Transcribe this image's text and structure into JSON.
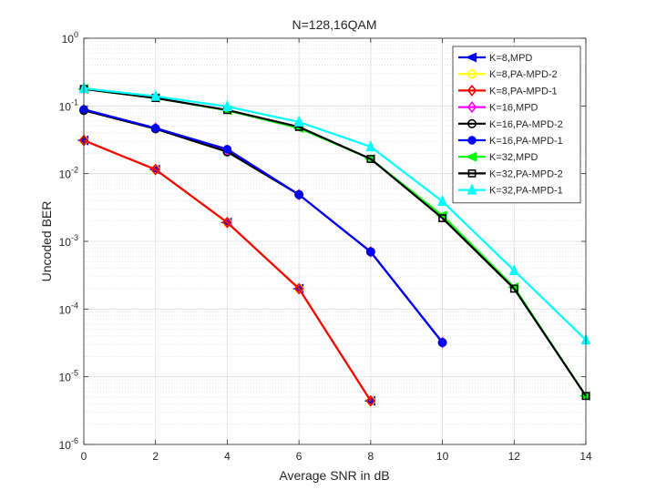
{
  "chart_data": {
    "type": "line",
    "title": "N=128,16QAM",
    "xlabel": "Average SNR in dB",
    "ylabel": "Uncoded BER",
    "xlim": [
      0,
      14
    ],
    "ylim": [
      1e-06,
      1
    ],
    "yscale": "log",
    "grid": true,
    "minor_grid": true,
    "legend_position": "top-right",
    "x_ticks": [
      0,
      2,
      4,
      6,
      8,
      10,
      12,
      14
    ],
    "y_ticks": [
      {
        "value": 1,
        "base": "10",
        "exp": "0"
      },
      {
        "value": 0.1,
        "base": "10",
        "exp": "-1"
      },
      {
        "value": 0.01,
        "base": "10",
        "exp": "-2"
      },
      {
        "value": 0.001,
        "base": "10",
        "exp": "-3"
      },
      {
        "value": 0.0001,
        "base": "10",
        "exp": "-4"
      },
      {
        "value": 1e-05,
        "base": "10",
        "exp": "-5"
      },
      {
        "value": 1e-06,
        "base": "10",
        "exp": "-6"
      }
    ],
    "series": [
      {
        "name": "K=8,MPD",
        "color": "#0000ff",
        "marker": "triangle-left",
        "x": [
          0,
          2,
          4,
          6,
          8
        ],
        "y": [
          0.031,
          0.0115,
          0.0019,
          0.0002,
          4.4e-06
        ]
      },
      {
        "name": "K=8,PA-MPD-2",
        "color": "#ffff00",
        "marker": "circle",
        "x": [
          0,
          2,
          4,
          6,
          8
        ],
        "y": [
          0.031,
          0.0115,
          0.0019,
          0.0002,
          4.4e-06
        ]
      },
      {
        "name": "K=8,PA-MPD-1",
        "color": "#ff0000",
        "marker": "diamond",
        "x": [
          0,
          2,
          4,
          6,
          8
        ],
        "y": [
          0.031,
          0.0115,
          0.0019,
          0.0002,
          4.4e-06
        ]
      },
      {
        "name": "K=16,MPD",
        "color": "#ff00ff",
        "marker": "diamond",
        "x": [
          0,
          2,
          4,
          6,
          8,
          10
        ],
        "y": [
          0.088,
          0.047,
          0.022,
          0.0049,
          0.0007,
          3.2e-05
        ]
      },
      {
        "name": "K=16,PA-MPD-2",
        "color": "#000000",
        "marker": "circle",
        "x": [
          0,
          2,
          4,
          6,
          8,
          10
        ],
        "y": [
          0.086,
          0.046,
          0.021,
          0.0049,
          0.0007,
          3.2e-05
        ]
      },
      {
        "name": "K=16,PA-MPD-1",
        "color": "#0000ff",
        "marker": "star",
        "x": [
          0,
          2,
          4,
          6,
          8,
          10
        ],
        "y": [
          0.089,
          0.047,
          0.023,
          0.0049,
          0.0007,
          3.2e-05
        ]
      },
      {
        "name": "K=32,MPD",
        "color": "#00ff00",
        "marker": "triangle-left",
        "x": [
          0,
          2,
          4,
          6,
          8,
          10,
          12,
          14
        ],
        "y": [
          0.178,
          0.131,
          0.086,
          0.047,
          0.0165,
          0.0024,
          0.00021,
          5.2e-06
        ]
      },
      {
        "name": "K=32,PA-MPD-2",
        "color": "#000000",
        "marker": "square",
        "x": [
          0,
          2,
          4,
          6,
          8,
          10,
          12,
          14
        ],
        "y": [
          0.178,
          0.131,
          0.087,
          0.049,
          0.0165,
          0.0022,
          0.0002,
          5.2e-06
        ]
      },
      {
        "name": "K=32,PA-MPD-1",
        "color": "#00ffff",
        "marker": "triangle-up",
        "x": [
          0,
          2,
          4,
          6,
          8,
          10,
          12,
          14
        ],
        "y": [
          0.182,
          0.139,
          0.098,
          0.058,
          0.025,
          0.0039,
          0.00037,
          3.5e-05
        ]
      }
    ]
  }
}
